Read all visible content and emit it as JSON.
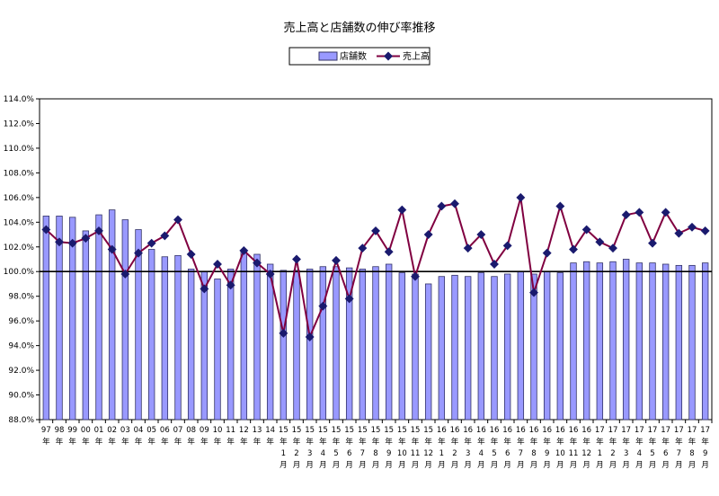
{
  "chart_data": {
    "type": "bar",
    "title": "売上高と店舗数の伸び率推移",
    "ylim": [
      88.0,
      114.0
    ],
    "y_ticks": [
      "88.0%",
      "90.0%",
      "92.0%",
      "94.0%",
      "96.0%",
      "98.0%",
      "100.0%",
      "102.0%",
      "104.0%",
      "106.0%",
      "108.0%",
      "110.0%",
      "112.0%",
      "114.0%"
    ],
    "reference_line": 100.0,
    "legend": {
      "position": "top-center"
    },
    "colors": {
      "bar_fill": "#9999ff",
      "bar_stroke": "#333366",
      "line": "#800040",
      "marker": "#1a1a6e"
    },
    "categories": [
      [
        "97",
        "年"
      ],
      [
        "98",
        "年"
      ],
      [
        "99",
        "年"
      ],
      [
        "00",
        "年"
      ],
      [
        "01",
        "年"
      ],
      [
        "02",
        "年"
      ],
      [
        "03",
        "年"
      ],
      [
        "04",
        "年"
      ],
      [
        "05",
        "年"
      ],
      [
        "06",
        "年"
      ],
      [
        "07",
        "年"
      ],
      [
        "08",
        "年"
      ],
      [
        "09",
        "年"
      ],
      [
        "10",
        "年"
      ],
      [
        "11",
        "年"
      ],
      [
        "12",
        "年"
      ],
      [
        "13",
        "年"
      ],
      [
        "14",
        "年"
      ],
      [
        "15",
        "年",
        "1",
        "月"
      ],
      [
        "15",
        "年",
        "2",
        "月"
      ],
      [
        "15",
        "年",
        "3",
        "月"
      ],
      [
        "15",
        "年",
        "4",
        "月"
      ],
      [
        "15",
        "年",
        "5",
        "月"
      ],
      [
        "15",
        "年",
        "6",
        "月"
      ],
      [
        "15",
        "年",
        "7",
        "月"
      ],
      [
        "15",
        "年",
        "8",
        "月"
      ],
      [
        "15",
        "年",
        "9",
        "月"
      ],
      [
        "15",
        "年",
        "10",
        "月"
      ],
      [
        "15",
        "年",
        "11",
        "月"
      ],
      [
        "15",
        "年",
        "12",
        "月"
      ],
      [
        "16",
        "年",
        "1",
        "月"
      ],
      [
        "16",
        "年",
        "2",
        "月"
      ],
      [
        "16",
        "年",
        "3",
        "月"
      ],
      [
        "16",
        "年",
        "4",
        "月"
      ],
      [
        "16",
        "年",
        "5",
        "月"
      ],
      [
        "16",
        "年",
        "6",
        "月"
      ],
      [
        "16",
        "年",
        "7",
        "月"
      ],
      [
        "16",
        "年",
        "8",
        "月"
      ],
      [
        "16",
        "年",
        "9",
        "月"
      ],
      [
        "16",
        "年",
        "10",
        "月"
      ],
      [
        "16",
        "年",
        "11",
        "月"
      ],
      [
        "16",
        "年",
        "12",
        "月"
      ],
      [
        "17",
        "年",
        "1",
        "月"
      ],
      [
        "17",
        "年",
        "2",
        "月"
      ],
      [
        "17",
        "年",
        "3",
        "月"
      ],
      [
        "17",
        "年",
        "4",
        "月"
      ],
      [
        "17",
        "年",
        "5",
        "月"
      ],
      [
        "17",
        "年",
        "6",
        "月"
      ],
      [
        "17",
        "年",
        "7",
        "月"
      ],
      [
        "17",
        "年",
        "8",
        "月"
      ],
      [
        "17",
        "年",
        "9",
        "月"
      ]
    ],
    "series": [
      {
        "name": "店舗数",
        "kind": "bar",
        "values": [
          104.5,
          104.5,
          104.4,
          103.3,
          104.6,
          105.0,
          104.2,
          103.4,
          101.8,
          101.2,
          101.3,
          100.2,
          100.0,
          99.4,
          100.2,
          101.7,
          101.4,
          100.6,
          100.1,
          100.1,
          100.2,
          100.4,
          100.4,
          100.3,
          100.2,
          100.4,
          100.6,
          99.9,
          99.8,
          99.0,
          99.6,
          99.7,
          99.6,
          99.9,
          99.6,
          99.8,
          100.0,
          99.8,
          100.0,
          99.9,
          100.7,
          100.8,
          100.7,
          100.8,
          101.0,
          100.7,
          100.7,
          100.6,
          100.5,
          100.5,
          100.7
        ]
      },
      {
        "name": "売上高",
        "kind": "line",
        "values": [
          103.4,
          102.4,
          102.3,
          102.7,
          103.3,
          101.8,
          99.8,
          101.5,
          102.3,
          102.9,
          104.2,
          101.4,
          98.6,
          100.6,
          98.9,
          101.7,
          100.7,
          99.8,
          95.0,
          101.0,
          94.7,
          97.2,
          100.9,
          97.8,
          101.9,
          103.3,
          101.6,
          105.0,
          99.6,
          103.0,
          105.3,
          105.5,
          101.9,
          103.0,
          100.6,
          102.1,
          106.0,
          98.3,
          101.5,
          105.3,
          101.8,
          103.4,
          102.4,
          101.9,
          104.6,
          104.8,
          102.3,
          104.8,
          103.1,
          103.6,
          103.3
        ]
      }
    ]
  }
}
